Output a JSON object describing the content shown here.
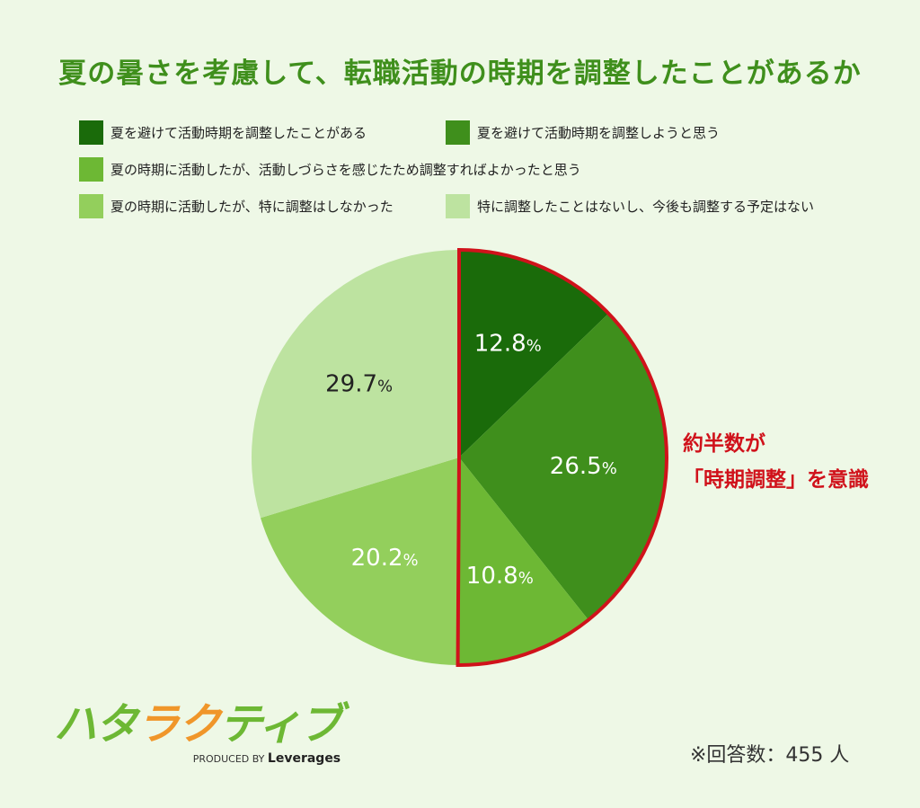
{
  "chart_data": {
    "type": "pie",
    "title": "夏の暑さを考慮して、転職活動の時期を調整したことがあるか",
    "start": "top",
    "direction": "clockwise",
    "categories": [
      "夏を避けて活動時期を調整したことがある",
      "夏を避けて活動時期を調整しようと思う",
      "夏の時期に活動したが、活動しづらさを感じたため調整すればよかったと思う",
      "夏の時期に活動したが、特に調整はしなかった",
      "特に調整したことはないし、今後も調整する予定はない"
    ],
    "values": [
      12.8,
      26.5,
      10.8,
      20.2,
      29.7
    ],
    "labels": [
      "12.8",
      "26.5",
      "10.8",
      "20.2",
      "29.7"
    ],
    "unit": "%",
    "colors": [
      "#1a6b0a",
      "#3f8f1c",
      "#6db834",
      "#93cf5c",
      "#bde3a0"
    ],
    "label_colors": [
      "#ffffff",
      "#ffffff",
      "#ffffff",
      "#ffffff",
      "#222222"
    ],
    "highlight": {
      "slices": [
        0,
        1,
        2
      ],
      "color": "#d0121b",
      "text_line1": "約半数が",
      "text_line2": "「時期調整」を意識"
    },
    "legend_position": "top"
  },
  "note": "※回答数：455 人",
  "logo": {
    "part1": "ハタ",
    "part2": "ラク",
    "part3": "ティブ",
    "sub_prefix": "PRODUCED BY",
    "sub_brand": "Leverages"
  }
}
